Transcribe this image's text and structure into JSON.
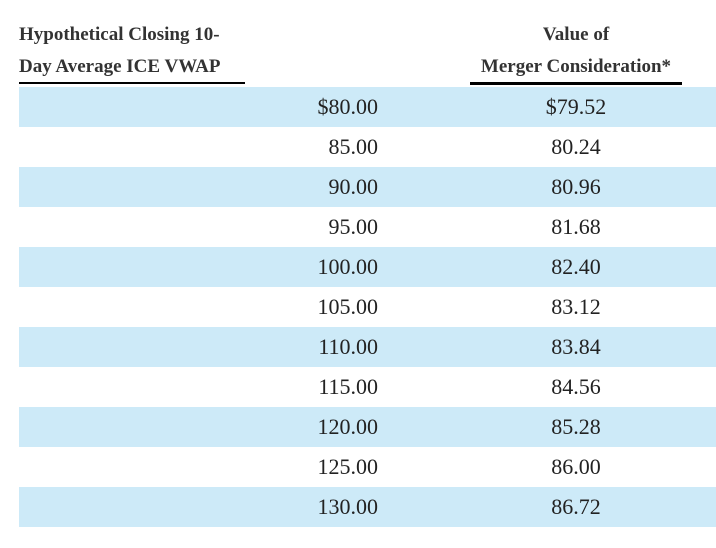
{
  "headers": {
    "left_line1": "Hypothetical Closing 10-",
    "left_line2": "Day Average ICE VWAP",
    "right_line1": "Value of",
    "right_line2": "Merger Consideration*"
  },
  "rows": [
    {
      "vwap": "$80.00",
      "value": "$79.52"
    },
    {
      "vwap": "85.00",
      "value": "80.24"
    },
    {
      "vwap": "90.00",
      "value": "80.96"
    },
    {
      "vwap": "95.00",
      "value": "81.68"
    },
    {
      "vwap": "100.00",
      "value": "82.40"
    },
    {
      "vwap": "105.00",
      "value": "83.12"
    },
    {
      "vwap": "110.00",
      "value": "83.84"
    },
    {
      "vwap": "115.00",
      "value": "84.56"
    },
    {
      "vwap": "120.00",
      "value": "85.28"
    },
    {
      "vwap": "125.00",
      "value": "86.00"
    },
    {
      "vwap": "130.00",
      "value": "86.72"
    }
  ],
  "colors": {
    "row_shade": "#cdeaf8",
    "text": "#222222"
  }
}
